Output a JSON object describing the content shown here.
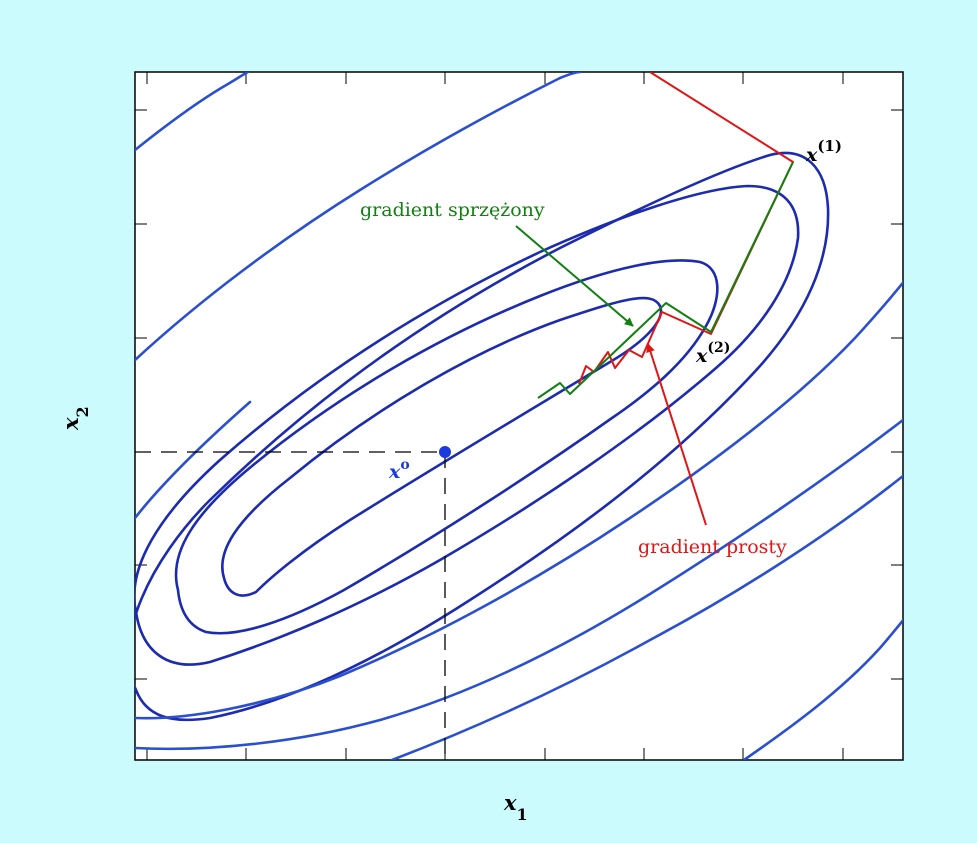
{
  "labels": {
    "axis_x": "x",
    "axis_x_sub": "1",
    "axis_y": "x",
    "axis_y_sub": "2",
    "optimum": "x",
    "optimum_sup": "o",
    "point1": "x",
    "point1_sup": "(1)",
    "point2": "x",
    "point2_sup": "(2)",
    "conjugate_gradient": "gradient sprzężony",
    "simple_gradient": "gradient prosty"
  },
  "colors": {
    "background": "#ccfbfd",
    "plot_background": "#ffffff",
    "contour": "#1c2bb0",
    "conjugate_gradient": "#118011",
    "simple_gradient": "#e01515",
    "optimum": "#1a3ae0"
  }
}
